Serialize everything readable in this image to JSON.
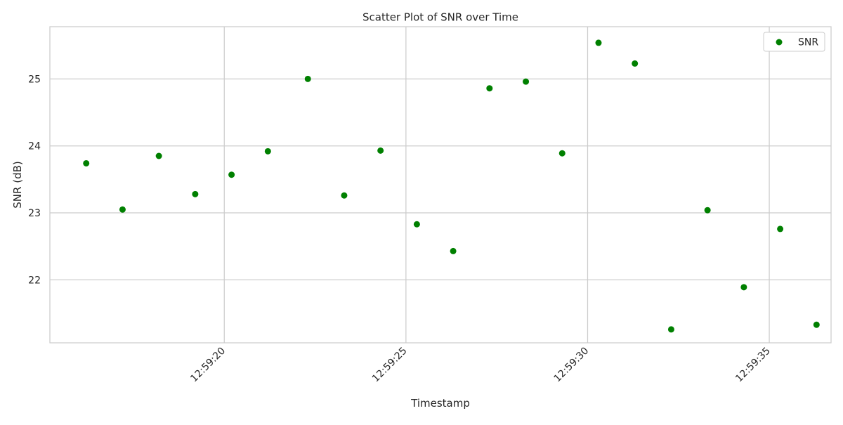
{
  "chart_data": {
    "type": "scatter",
    "title": "Scatter Plot of SNR over Time",
    "xlabel": "Timestamp",
    "ylabel": "SNR (dB)",
    "x_tick_labels": [
      "12:59:20",
      "12:59:25",
      "12:59:30",
      "12:59:35"
    ],
    "x_tick_values": [
      20,
      25,
      30,
      35
    ],
    "y_ticks": [
      22,
      23,
      24,
      25
    ],
    "xlim": [
      15.2,
      36.7
    ],
    "ylim": [
      21.06,
      25.78
    ],
    "grid": true,
    "legend_position": "top-right",
    "x_unit_note": "seconds past 12:59",
    "series": [
      {
        "name": "SNR",
        "color": "#008000",
        "x": [
          16.2,
          17.2,
          18.2,
          19.2,
          20.2,
          21.2,
          22.3,
          23.3,
          24.3,
          25.3,
          26.3,
          27.3,
          28.3,
          29.3,
          30.3,
          31.3,
          32.3,
          33.3,
          34.3,
          35.3,
          36.3
        ],
        "y": [
          23.74,
          23.05,
          23.85,
          23.28,
          23.57,
          23.92,
          25.0,
          23.26,
          23.93,
          22.83,
          22.43,
          24.86,
          24.96,
          23.89,
          25.54,
          25.23,
          21.26,
          23.04,
          21.89,
          22.76,
          21.33
        ]
      }
    ]
  }
}
